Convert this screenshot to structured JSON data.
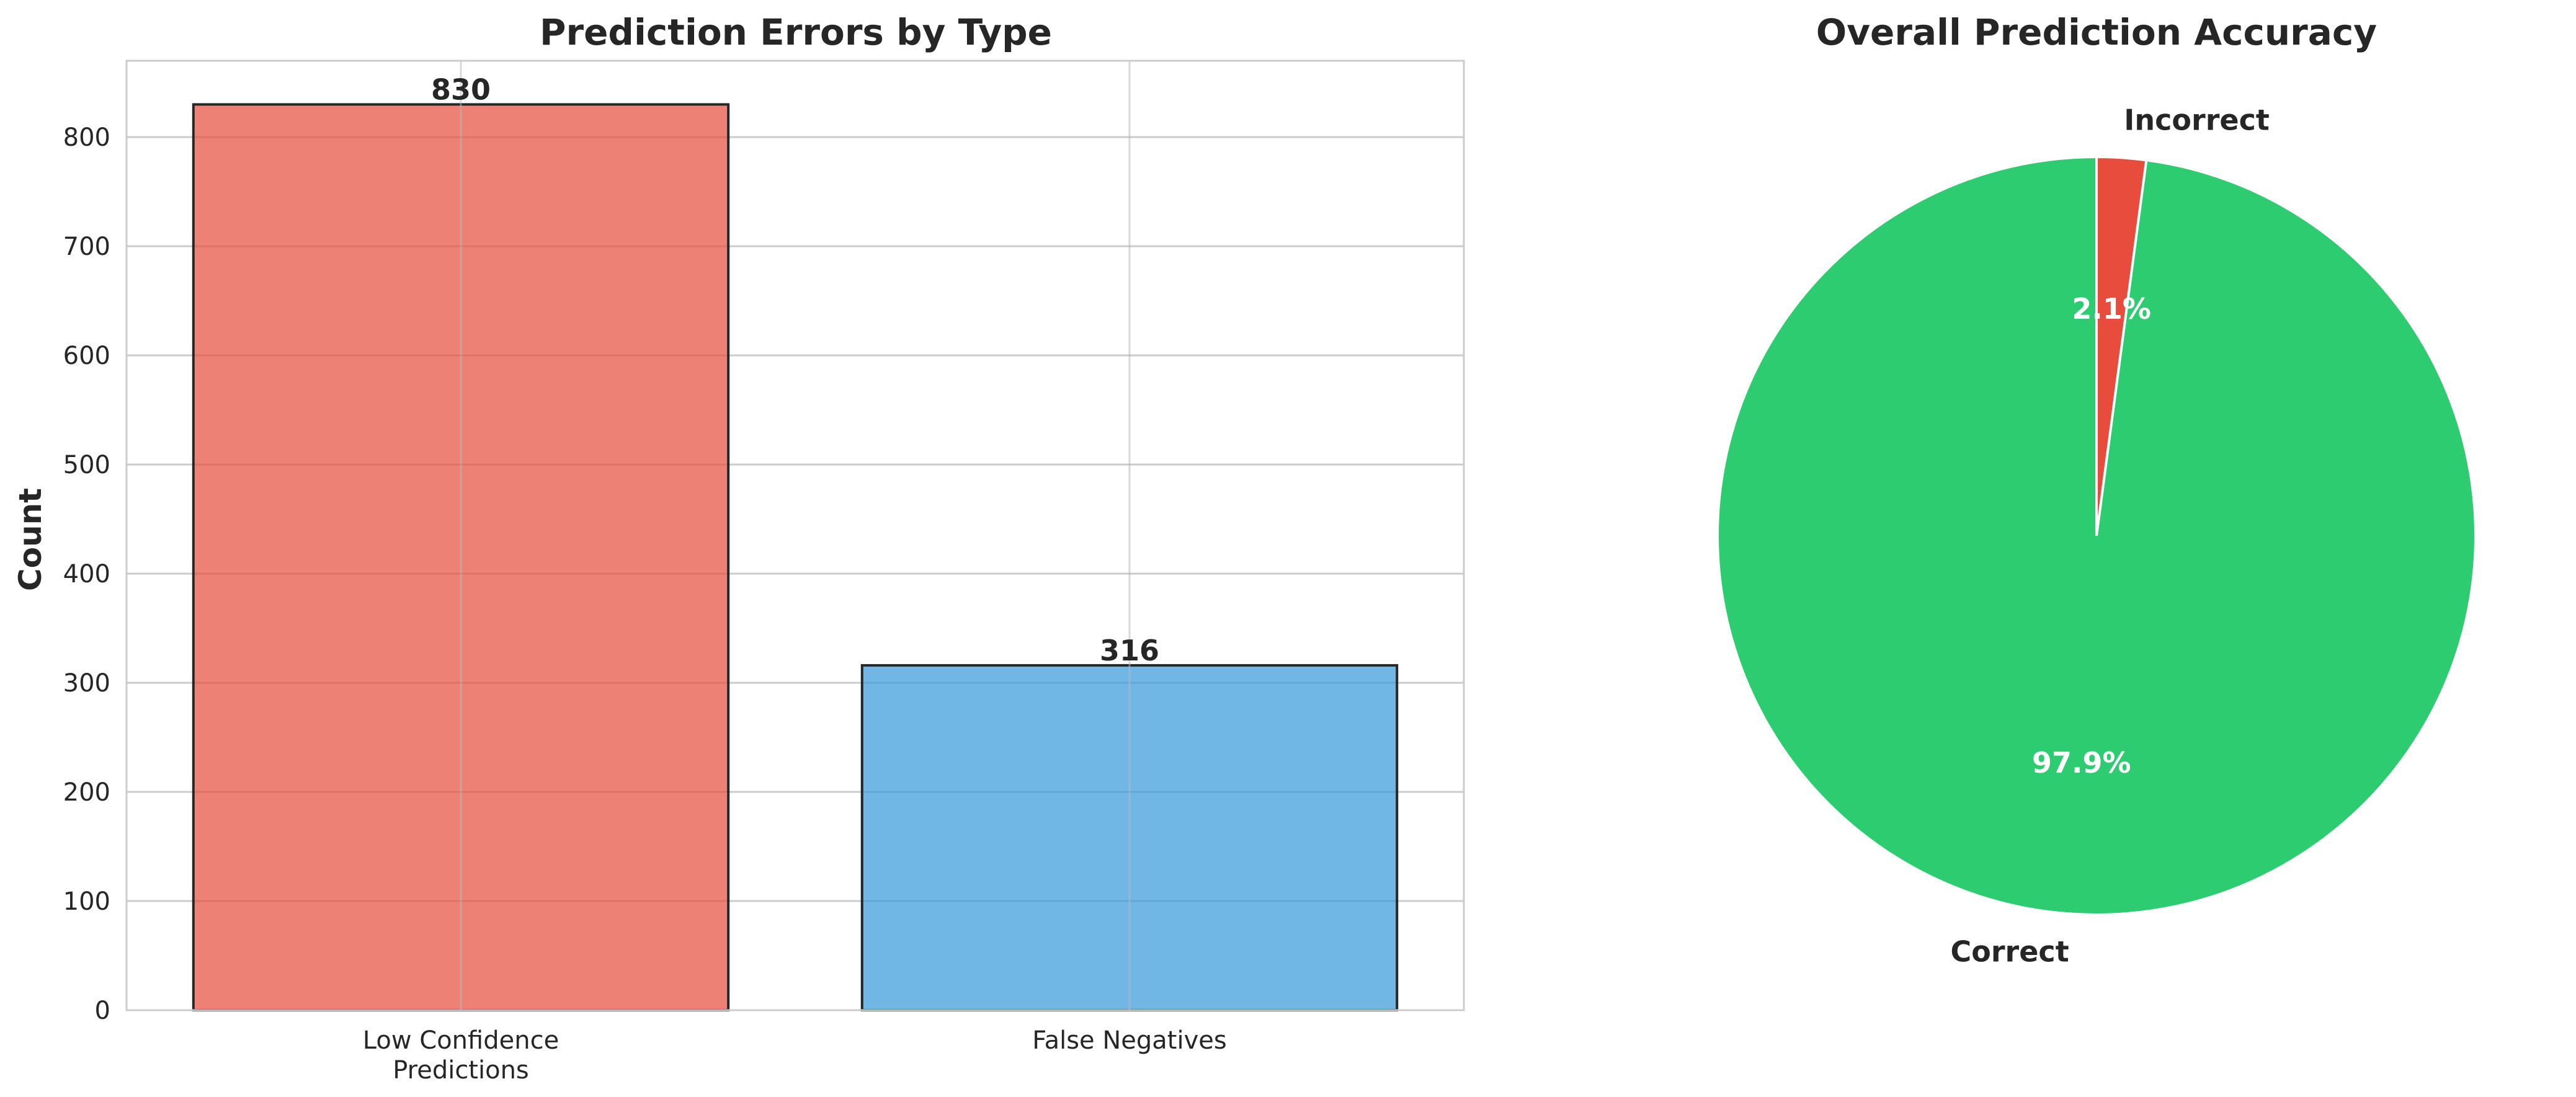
{
  "chart_data": [
    {
      "type": "bar",
      "title": "Prediction Errors by Type",
      "ylabel": "Count",
      "xlabel": "",
      "categories": [
        [
          "Low Confidence",
          "Predictions"
        ],
        [
          "False Negatives"
        ]
      ],
      "values": [
        830,
        316
      ],
      "value_labels": [
        "830",
        "316"
      ],
      "colors": [
        "#e74c3c",
        "#3498db"
      ],
      "ylim": [
        0,
        870
      ],
      "yticks": [
        0,
        100,
        200,
        300,
        400,
        500,
        600,
        700,
        800
      ],
      "ytick_labels": [
        "0",
        "100",
        "200",
        "300",
        "400",
        "500",
        "600",
        "700",
        "800"
      ],
      "grid": true
    },
    {
      "type": "pie",
      "title": "Overall Prediction Accuracy",
      "slices": [
        {
          "label": "Incorrect",
          "value": 2.1,
          "pct_label": "2.1%",
          "color": "#e74c3c"
        },
        {
          "label": "Correct",
          "value": 97.9,
          "pct_label": "97.9%",
          "color": "#2ecc71"
        }
      ],
      "start_angle": 90,
      "direction": "clockwise"
    }
  ]
}
